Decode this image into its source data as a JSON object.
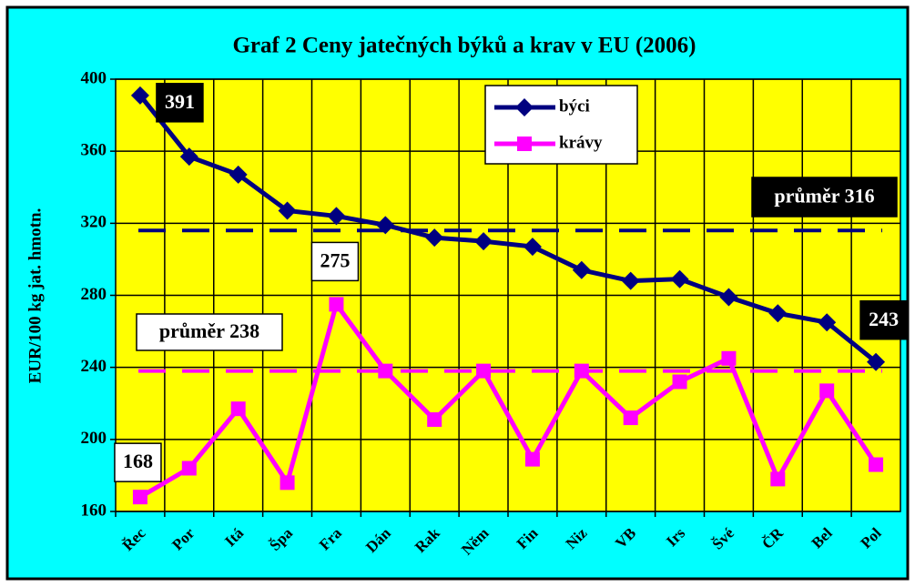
{
  "chart_data": {
    "type": "line",
    "title": "Graf 2  Ceny jatečných býků a krav v EU (2006)",
    "y_label": "EUR/100 kg jat. hmotn.",
    "categories": [
      "Řec",
      "Por",
      "Itá",
      "Špa",
      "Fra",
      "Dán",
      "Rak",
      "Něm",
      "Fin",
      "Niz",
      "VB",
      "Irs",
      "Švé",
      "ČR",
      "Bel",
      "Pol"
    ],
    "series": [
      {
        "name": "býci",
        "color": "#000080",
        "marker": "diamond",
        "values": [
          391,
          357,
          347,
          327,
          324,
          319,
          312,
          310,
          307,
          294,
          288,
          289,
          279,
          270,
          265,
          243
        ],
        "labeled_points": [
          0,
          15
        ]
      },
      {
        "name": "krávy",
        "color": "#ff00ff",
        "marker": "square",
        "values": [
          168,
          184,
          217,
          176,
          275,
          238,
          211,
          238,
          189,
          238,
          212,
          232,
          245,
          178,
          227,
          186
        ],
        "labeled_points": [
          0,
          4
        ]
      }
    ],
    "reference_lines": [
      {
        "value": 316,
        "label": "průměr 316",
        "color": "#000080"
      },
      {
        "value": 238,
        "label": "průměr 238",
        "color": "#ff00ff"
      }
    ],
    "ylim": [
      160,
      400
    ],
    "yticks": [
      160,
      200,
      240,
      280,
      320,
      360,
      400
    ],
    "grid": true,
    "legend": "top"
  }
}
